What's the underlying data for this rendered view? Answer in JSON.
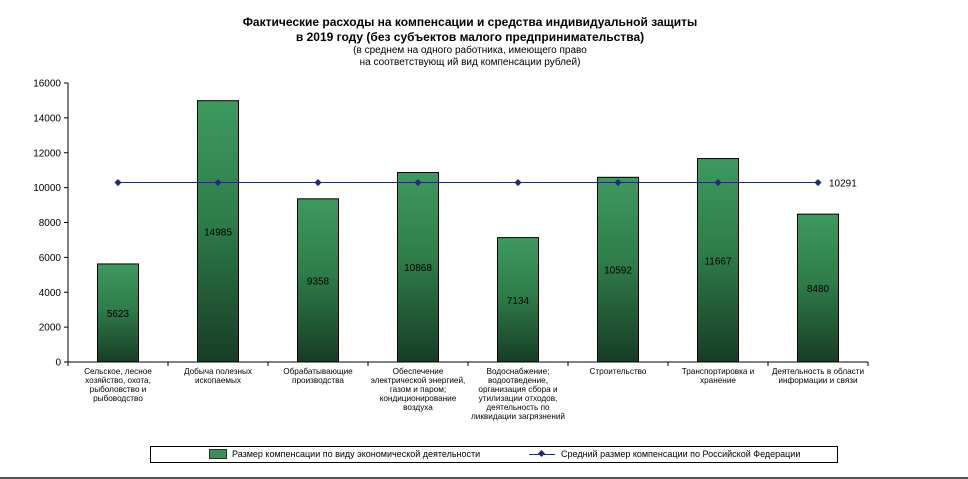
{
  "chart_data": {
    "type": "bar",
    "title": "Фактические расходы на компенсации и средства индивидуальной защиты",
    "title_line2": "в 2019 году (без субъектов малого предпринимательства)",
    "subtitle_line1": "(в среднем на одного работника,  имеющего право",
    "subtitle_line2": "на соответствующ ий  вид компенсации  рублей)",
    "xlabel": "",
    "ylabel": "",
    "ylim": [
      0,
      16000
    ],
    "yticks": [
      "0",
      "2000",
      "4000",
      "6000",
      "8000",
      "10000",
      "12000",
      "14000",
      "16000"
    ],
    "grid": false,
    "legend_position": "bottom",
    "categories": [
      [
        "Сельское, лесное",
        "хозяйство, охота,",
        "рыболовство и",
        "рыбоводство"
      ],
      [
        "Добыча полезных",
        "ископаемых"
      ],
      [
        "Обрабатывающие",
        "производства"
      ],
      [
        "Обеспечение",
        "электрической энергией,",
        "газом и паром;",
        "кондиционирование",
        "воздуха"
      ],
      [
        "Водоснабжение;",
        "водоотведение,",
        "организация сбора и",
        "утилизации отходов,",
        "деятельность по",
        "ликвидации загрязнений"
      ],
      [
        "Строительство"
      ],
      [
        "Транспортировка и",
        "хранение"
      ],
      [
        "Деятельность в области",
        "информации и связи"
      ]
    ],
    "series": [
      {
        "name": "Размер компенсации  по  виду экономической деятельности",
        "type": "bar",
        "values": [
          5623,
          14985,
          9358,
          10868,
          7134,
          10592,
          11667,
          8480
        ],
        "labels": [
          "5623",
          "14985",
          "9358",
          "10868",
          "7134",
          "10592",
          "11667",
          "8480"
        ],
        "color": "#3d8f5a"
      },
      {
        "name": "Средний  размер компенсации  по Российской  Федерации",
        "type": "line",
        "value": 10291,
        "label": "10291",
        "color": "#1f2d6e"
      }
    ]
  }
}
